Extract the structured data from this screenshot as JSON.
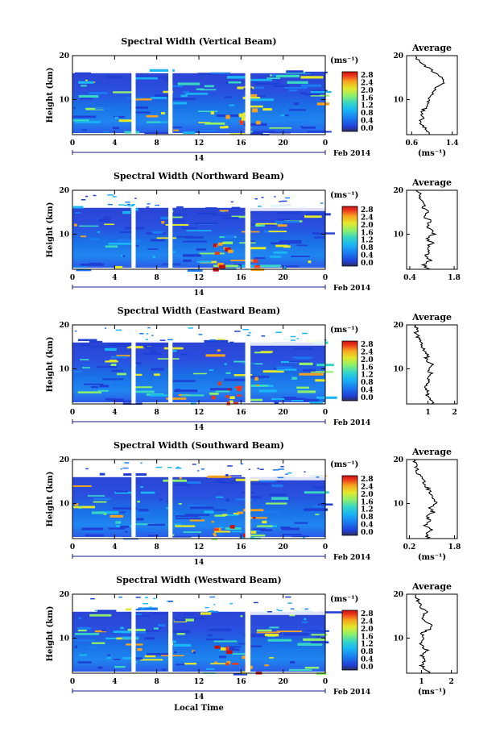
{
  "colors": {
    "background": "#ffffff",
    "scale": [
      "#2b2f5c",
      "#1f3fd6",
      "#1a7cf2",
      "#19b7f4",
      "#37d7c4",
      "#8ef06a",
      "#e4e829",
      "#f6a21f",
      "#ee3a1c",
      "#c80f0f"
    ]
  },
  "chart_data": [
    {
      "type": "heatmap",
      "title": "Spectral Width (Vertical Beam)",
      "ylabel": "Height (km)",
      "xlabel": "",
      "date_label": "Feb 2014",
      "day_label": "14",
      "x_ticks": [
        "0",
        "4",
        "8",
        "12",
        "16",
        "20",
        "0"
      ],
      "y_ticks": [
        "20",
        "10"
      ],
      "colorbar": {
        "unit": "(ms⁻¹)",
        "ticks": [
          "2.8",
          "2.4",
          "2.0",
          "1.6",
          "1.2",
          "0.8",
          "0.4",
          "0.0"
        ],
        "range": [
          0.0,
          2.8
        ]
      },
      "profile": {
        "title": "Average",
        "xlabel": "(ms⁻¹)",
        "x_ticks": [
          "0.6",
          "1.4"
        ],
        "x_ticks_all": [
          "0.6",
          "1.4"
        ],
        "xlim": [
          0.5,
          1.5
        ],
        "y_ticks": [
          "20",
          "10"
        ],
        "ylim": [
          2,
          20
        ],
        "heights": [
          2,
          3,
          4,
          5,
          6,
          7,
          8,
          9,
          10,
          11,
          12,
          13,
          14,
          15,
          16,
          17,
          18,
          19,
          20
        ],
        "values": [
          0.95,
          0.92,
          0.8,
          0.78,
          0.83,
          0.8,
          0.86,
          0.9,
          0.95,
          1.02,
          1.05,
          1.1,
          1.25,
          1.2,
          1.05,
          0.95,
          0.8,
          0.72,
          0.68
        ]
      }
    },
    {
      "type": "heatmap",
      "title": "Spectral Width (Northward Beam)",
      "ylabel": "Height (km)",
      "xlabel": "",
      "date_label": "Feb 2014",
      "day_label": "14",
      "x_ticks": [
        "0",
        "4",
        "8",
        "12",
        "16",
        "20",
        "0"
      ],
      "y_ticks": [
        "20",
        "10"
      ],
      "colorbar": {
        "unit": "(ms⁻¹)",
        "ticks": [
          "2.8",
          "2.4",
          "2.0",
          "1.6",
          "1.2",
          "0.8",
          "0.4",
          "0.0"
        ],
        "range": [
          0.0,
          2.8
        ]
      },
      "profile": {
        "title": "Average",
        "xlabel": "",
        "x_ticks": [
          "0.4",
          "1.8"
        ],
        "xlim": [
          0.3,
          1.9
        ],
        "y_ticks": [
          "20",
          "10"
        ],
        "ylim": [
          2,
          20
        ],
        "heights": [
          2,
          3,
          4,
          5,
          6,
          7,
          8,
          9,
          10,
          11,
          12,
          13,
          14,
          15,
          16,
          17,
          18,
          19,
          20
        ],
        "values": [
          1.0,
          0.85,
          1.05,
          0.9,
          1.0,
          0.95,
          1.1,
          0.9,
          1.15,
          1.05,
          0.95,
          1.1,
          0.85,
          1.0,
          0.8,
          0.9,
          0.7,
          0.75,
          0.6
        ]
      }
    },
    {
      "type": "heatmap",
      "title": "Spectral Width (Eastward Beam)",
      "ylabel": "Height (km)",
      "xlabel": "",
      "date_label": "Feb 2014",
      "day_label": "14",
      "x_ticks": [
        "0",
        "4",
        "8",
        "12",
        "16",
        "20",
        "0"
      ],
      "y_ticks": [
        "20",
        "10"
      ],
      "colorbar": {
        "unit": "(ms⁻¹)",
        "ticks": [
          "2.8",
          "2.4",
          "2.0",
          "1.6",
          "1.2",
          "0.8",
          "0.4",
          "0.0"
        ],
        "range": [
          0.0,
          2.8
        ]
      },
      "profile": {
        "title": "Average",
        "xlabel": "",
        "x_ticks": [
          "1",
          "2"
        ],
        "xlim": [
          0.2,
          2.1
        ],
        "y_ticks": [
          "20",
          "10"
        ],
        "ylim": [
          2,
          20
        ],
        "heights": [
          2,
          3,
          4,
          5,
          6,
          7,
          8,
          9,
          10,
          11,
          12,
          13,
          14,
          15,
          16,
          17,
          18,
          19,
          20
        ],
        "values": [
          1.2,
          1.05,
          0.95,
          1.0,
          0.9,
          1.05,
          0.95,
          1.1,
          1.0,
          1.15,
          0.9,
          1.0,
          0.85,
          0.8,
          0.7,
          0.65,
          0.55,
          0.6,
          0.5
        ]
      }
    },
    {
      "type": "heatmap",
      "title": "Spectral Width (Southward Beam)",
      "ylabel": "Height (km)",
      "xlabel": "",
      "date_label": "Feb 2014",
      "day_label": "14",
      "x_ticks": [
        "0",
        "4",
        "8",
        "12",
        "16",
        "20",
        "0"
      ],
      "y_ticks": [
        "20",
        "10"
      ],
      "colorbar": {
        "unit": "(ms⁻¹)",
        "ticks": [
          "2.8",
          "2.4",
          "2.0",
          "1.6",
          "1.2",
          "0.8",
          "0.4",
          "0.0"
        ],
        "range": [
          0.0,
          2.8
        ]
      },
      "profile": {
        "title": "Average",
        "xlabel": "(ms⁻¹)",
        "x_ticks": [
          "0.2",
          "1.8"
        ],
        "xlim": [
          0.1,
          1.9
        ],
        "y_ticks": [
          "20",
          "10"
        ],
        "ylim": [
          2,
          20
        ],
        "heights": [
          2,
          3,
          4,
          5,
          6,
          7,
          8,
          9,
          10,
          11,
          12,
          13,
          14,
          15,
          16,
          17,
          18,
          19,
          20
        ],
        "values": [
          0.85,
          0.8,
          1.0,
          0.75,
          0.9,
          0.85,
          1.05,
          0.95,
          1.15,
          1.1,
          1.0,
          0.9,
          0.8,
          0.7,
          0.6,
          0.5,
          0.45,
          0.4,
          0.35
        ]
      }
    },
    {
      "type": "heatmap",
      "title": "Spectral Width (Westward Beam)",
      "ylabel": "Height (km)",
      "xlabel": "Local Time",
      "date_label": "Feb 2014",
      "day_label": "14",
      "x_ticks": [
        "0",
        "4",
        "8",
        "12",
        "16",
        "20",
        "0"
      ],
      "y_ticks": [
        "20",
        "10"
      ],
      "colorbar": {
        "unit": "(ms⁻¹)",
        "ticks": [
          "2.8",
          "2.4",
          "2.0",
          "1.6",
          "1.2",
          "0.8",
          "0.4",
          "0.0"
        ],
        "range": [
          0.0,
          2.8
        ]
      },
      "profile": {
        "title": "Average",
        "xlabel": "(ms⁻¹)",
        "x_ticks": [
          "1",
          "2"
        ],
        "xlim": [
          0.5,
          2.2
        ],
        "y_ticks": [
          "20",
          "10"
        ],
        "ylim": [
          2,
          20
        ],
        "heights": [
          2,
          3,
          4,
          5,
          6,
          7,
          8,
          9,
          10,
          11,
          12,
          13,
          14,
          15,
          16,
          17,
          18,
          19,
          20
        ],
        "values": [
          1.3,
          1.05,
          1.0,
          1.15,
          1.0,
          1.2,
          1.05,
          0.95,
          1.1,
          1.0,
          1.25,
          1.4,
          1.1,
          1.05,
          1.2,
          1.0,
          0.95,
          0.85,
          0.8
        ]
      }
    }
  ]
}
